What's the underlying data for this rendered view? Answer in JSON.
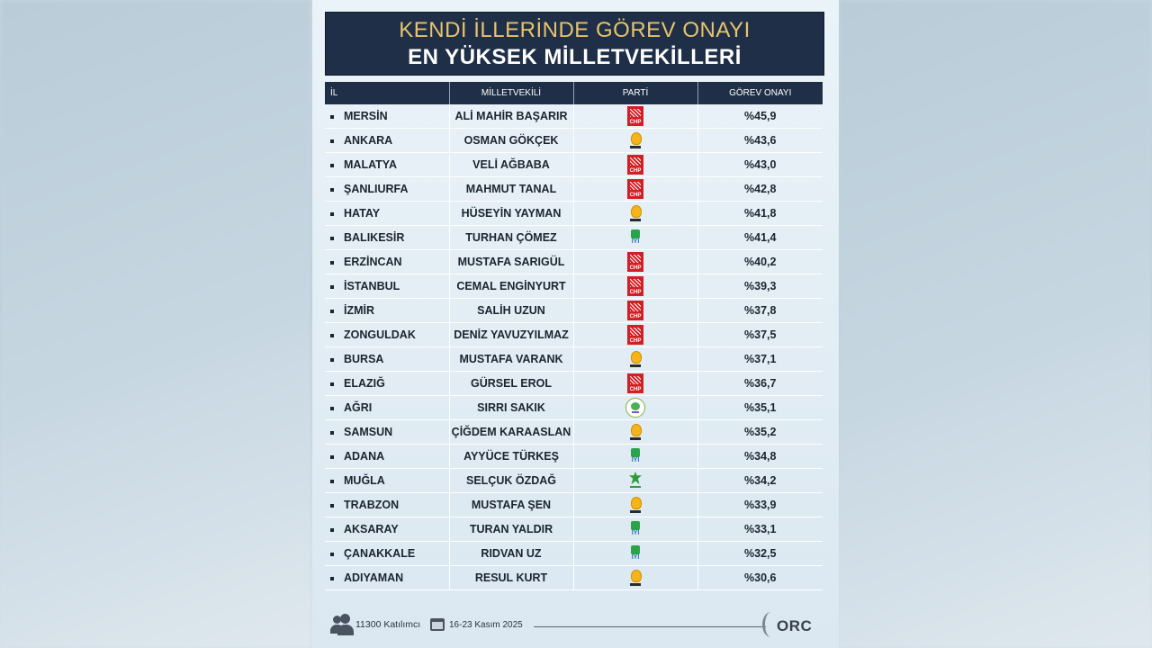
{
  "header": {
    "line1": "KENDİ İLLERİNDE GÖREV ONAYI",
    "line2": "EN YÜKSEK MİLLETVEKİLLERİ"
  },
  "columns": [
    "İL",
    "MİLLETVEKİLİ",
    "PARTİ",
    "GÖREV ONAYI"
  ],
  "party_logos": {
    "CHP": "chp-logo-icon",
    "AKP": "ak-party-bulb-icon",
    "IYI": "iyi-party-icon",
    "DEM": "dem-party-icon",
    "GHP": "green-leaf-party-icon"
  },
  "rows": [
    {
      "il": "MERSİN",
      "mv": "ALİ MAHİR BAŞARIR",
      "parti": "CHP",
      "onay": "%45,9"
    },
    {
      "il": "ANKARA",
      "mv": "OSMAN GÖKÇEK",
      "parti": "AKP",
      "onay": "%43,6"
    },
    {
      "il": "MALATYA",
      "mv": "VELİ AĞBABA",
      "parti": "CHP",
      "onay": "%43,0"
    },
    {
      "il": "ŞANLIURFA",
      "mv": "MAHMUT TANAL",
      "parti": "CHP",
      "onay": "%42,8"
    },
    {
      "il": "HATAY",
      "mv": "HÜSEYİN YAYMAN",
      "parti": "AKP",
      "onay": "%41,8"
    },
    {
      "il": "BALIKESİR",
      "mv": "TURHAN ÇÖMEZ",
      "parti": "IYI",
      "onay": "%41,4"
    },
    {
      "il": "ERZİNCAN",
      "mv": "MUSTAFA SARIGÜL",
      "parti": "CHP",
      "onay": "%40,2"
    },
    {
      "il": "İSTANBUL",
      "mv": "CEMAL ENGİNYURT",
      "parti": "CHP",
      "onay": "%39,3"
    },
    {
      "il": "İZMİR",
      "mv": "SALİH UZUN",
      "parti": "CHP",
      "onay": "%37,8"
    },
    {
      "il": "ZONGULDAK",
      "mv": "DENİZ YAVUZYILMAZ",
      "parti": "CHP",
      "onay": "%37,5"
    },
    {
      "il": "BURSA",
      "mv": "MUSTAFA VARANK",
      "parti": "AKP",
      "onay": "%37,1"
    },
    {
      "il": "ELAZIĞ",
      "mv": "GÜRSEL EROL",
      "parti": "CHP",
      "onay": "%36,7"
    },
    {
      "il": "AĞRI",
      "mv": "SIRRI SAKIK",
      "parti": "DEM",
      "onay": "%35,1"
    },
    {
      "il": "SAMSUN",
      "mv": "ÇİĞDEM KARAASLAN",
      "parti": "AKP",
      "onay": "%35,2"
    },
    {
      "il": "ADANA",
      "mv": "AYYÜCE TÜRKEŞ",
      "parti": "IYI",
      "onay": "%34,8"
    },
    {
      "il": "MUĞLA",
      "mv": "SELÇUK ÖZDAĞ",
      "parti": "GHP",
      "onay": "%34,2"
    },
    {
      "il": "TRABZON",
      "mv": "MUSTAFA ŞEN",
      "parti": "AKP",
      "onay": "%33,9"
    },
    {
      "il": "AKSARAY",
      "mv": "TURAN YALDIR",
      "parti": "IYI",
      "onay": "%33,1"
    },
    {
      "il": "ÇANAKKALE",
      "mv": "RIDVAN UZ",
      "parti": "IYI",
      "onay": "%32,5"
    },
    {
      "il": "ADIYAMAN",
      "mv": "RESUL KURT",
      "parti": "AKP",
      "onay": "%30,6"
    }
  ],
  "footer": {
    "participants": "11300 Katılımcı",
    "dates": "16-23 Kasım 2025",
    "brand": "ORC"
  }
}
